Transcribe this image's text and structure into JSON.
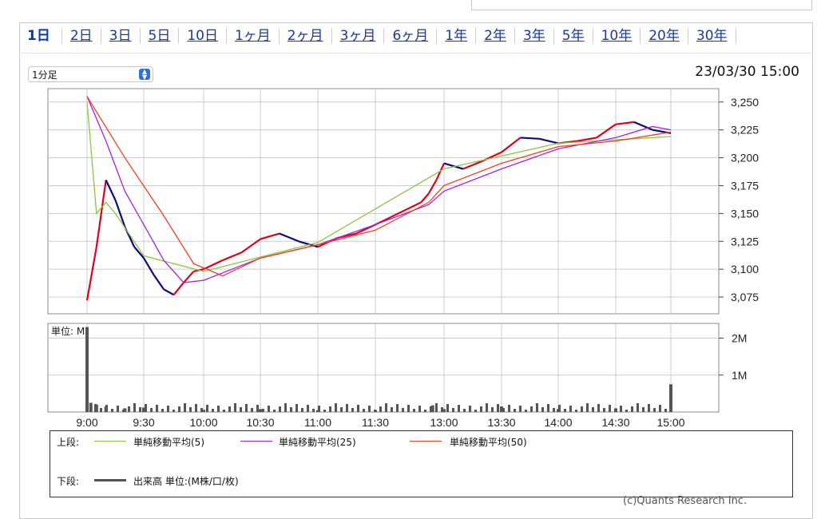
{
  "tabs": [
    "1日",
    "2日",
    "3日",
    "5日",
    "10日",
    "1ヶ月",
    "2ヶ月",
    "3ヶ月",
    "6ヶ月",
    "1年",
    "2年",
    "3年",
    "5年",
    "10年",
    "20年",
    "30年"
  ],
  "active_tab": "1日",
  "interval_select": {
    "value": "1分足"
  },
  "timestamp": "23/03/30 15:00",
  "colors": {
    "up": "#e0001b",
    "down": "#0a0a7a",
    "ma5": "#8cc63f",
    "ma25": "#a020f0",
    "ma50": "#f04020",
    "volume": "#555555"
  },
  "chart_data": [
    {
      "type": "line",
      "x_ticks": [
        "9:00",
        "9:30",
        "10:00",
        "10:30",
        "11:00",
        "11:30",
        "13:00",
        "13:30",
        "14:00",
        "14:30",
        "15:00"
      ],
      "ylim": [
        3060,
        3262
      ],
      "y_ticks": [
        "3,250",
        "3,225",
        "3,200",
        "3,175",
        "3,150",
        "3,125",
        "3,100",
        "3,075"
      ],
      "series": [
        {
          "name": "price",
          "x": [
            "9:00",
            "9:05",
            "9:10",
            "9:15",
            "9:20",
            "9:25",
            "9:30",
            "9:35",
            "9:40",
            "9:45",
            "9:50",
            "9:55",
            "10:00",
            "10:10",
            "10:20",
            "10:30",
            "10:40",
            "10:50",
            "11:00",
            "11:10",
            "11:20",
            "11:30",
            "12:30",
            "12:40",
            "12:50",
            "13:00",
            "13:10",
            "13:20",
            "13:30",
            "13:40",
            "13:50",
            "14:00",
            "14:10",
            "14:20",
            "14:30",
            "14:40",
            "14:50",
            "15:00"
          ],
          "values": [
            3072,
            3120,
            3180,
            3162,
            3138,
            3120,
            3110,
            3095,
            3082,
            3077,
            3088,
            3098,
            3100,
            3108,
            3115,
            3127,
            3132,
            3125,
            3120,
            3128,
            3132,
            3140,
            3160,
            3168,
            3180,
            3195,
            3190,
            3197,
            3205,
            3218,
            3217,
            3213,
            3215,
            3218,
            3230,
            3232,
            3225,
            3222
          ]
        },
        {
          "name": "単純移動平均(5)",
          "x": [
            "9:00",
            "9:05",
            "9:10",
            "9:15",
            "9:30",
            "10:00",
            "11:00",
            "13:00",
            "14:00",
            "15:00"
          ],
          "values": [
            3250,
            3150,
            3160,
            3150,
            3112,
            3098,
            3124,
            3190,
            3213,
            3219
          ]
        },
        {
          "name": "単純移動平均(25)",
          "x": [
            "9:00",
            "9:10",
            "9:20",
            "9:30",
            "9:40",
            "9:50",
            "10:00",
            "10:30",
            "11:00",
            "11:30",
            "12:40",
            "13:00",
            "13:30",
            "14:00",
            "14:30",
            "14:50",
            "15:00"
          ],
          "values": [
            3255,
            3215,
            3170,
            3140,
            3108,
            3088,
            3090,
            3110,
            3122,
            3140,
            3158,
            3170,
            3190,
            3208,
            3218,
            3228,
            3225
          ]
        },
        {
          "name": "単純移動平均(50)",
          "x": [
            "9:00",
            "9:20",
            "9:40",
            "9:55",
            "10:10",
            "10:30",
            "11:00",
            "11:30",
            "12:40",
            "13:00",
            "13:30",
            "14:00",
            "14:30",
            "15:00"
          ],
          "values": [
            3255,
            3200,
            3148,
            3105,
            3094,
            3110,
            3122,
            3135,
            3160,
            3175,
            3195,
            3210,
            3215,
            3223
          ]
        }
      ]
    },
    {
      "type": "bar",
      "unit_label": "単位: M",
      "y_ticks": [
        "2M",
        "1M"
      ],
      "ylim": [
        0,
        2.4
      ],
      "x": [
        "9:00",
        "9:02",
        "9:05",
        "9:10",
        "9:20",
        "9:30",
        "10:00",
        "10:30",
        "11:00",
        "11:30",
        "12:45",
        "13:00",
        "13:30",
        "14:00",
        "14:30",
        "15:00"
      ],
      "values": [
        2.3,
        0.25,
        0.2,
        0.15,
        0.1,
        0.12,
        0.06,
        0.08,
        0.05,
        0.05,
        0.18,
        0.08,
        0.15,
        0.08,
        0.1,
        0.75
      ]
    }
  ],
  "legend": {
    "upper_label": "上段:",
    "lower_label": "下段:",
    "ma5": "単純移動平均(5)",
    "ma25": "単純移動平均(25)",
    "ma50": "単純移動平均(50)",
    "volume": "出来高 単位:(M株/口/枚)"
  },
  "credit": "(c)Quants Research Inc."
}
